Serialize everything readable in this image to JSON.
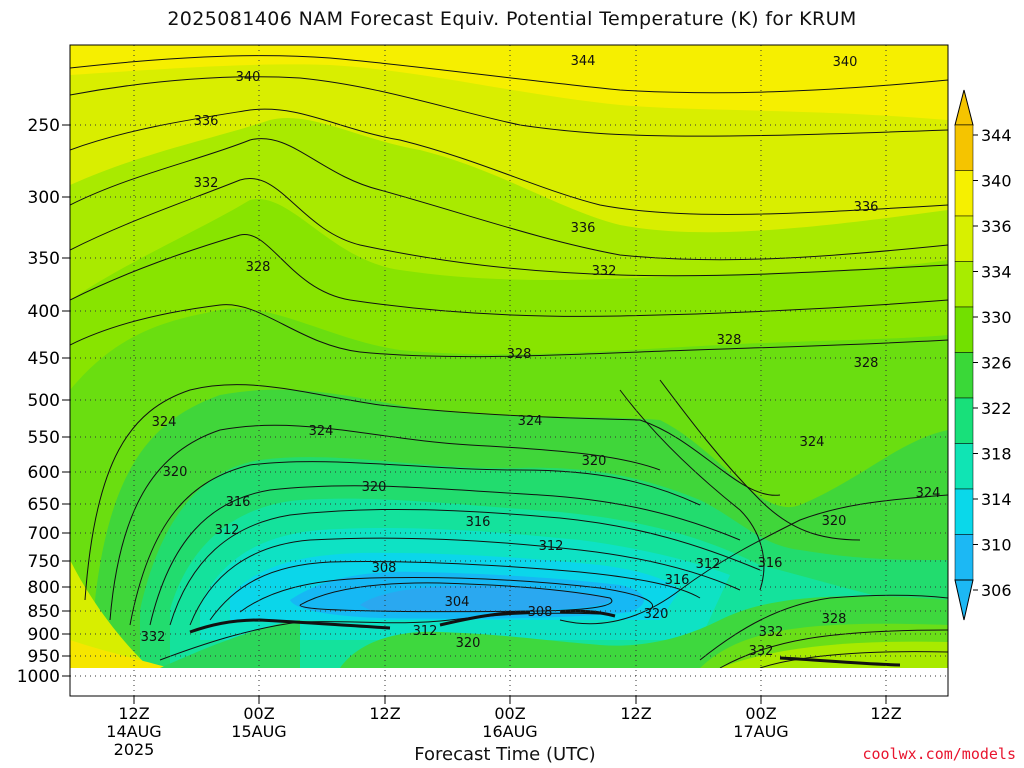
{
  "chart_data": {
    "type": "heatmap",
    "title": "2025081406 NAM Forecast Equiv. Potential Temperature (K) for KRUM",
    "xlabel": "Forecast Time (UTC)",
    "ylabel": "",
    "y_axis": {
      "ticks": [
        "250",
        "300",
        "350",
        "400",
        "450",
        "500",
        "550",
        "600",
        "650",
        "700",
        "750",
        "800",
        "850",
        "900",
        "950",
        "1000"
      ]
    },
    "x_axis": {
      "ticks": [
        {
          "time": "12Z",
          "date": "14AUG",
          "year": "2025"
        },
        {
          "time": "00Z",
          "date": "15AUG",
          "year": ""
        },
        {
          "time": "12Z",
          "date": "",
          "year": ""
        },
        {
          "time": "00Z",
          "date": "16AUG",
          "year": ""
        },
        {
          "time": "12Z",
          "date": "",
          "year": ""
        },
        {
          "time": "00Z",
          "date": "17AUG",
          "year": ""
        },
        {
          "time": "12Z",
          "date": "",
          "year": ""
        }
      ]
    },
    "colorbar": {
      "levels": [
        "344",
        "340",
        "336",
        "334",
        "330",
        "326",
        "322",
        "318",
        "314",
        "310",
        "306"
      ],
      "colors": [
        "#f5c400",
        "#f6f000",
        "#d8f000",
        "#a8ec00",
        "#72e000",
        "#3ad838",
        "#18e07a",
        "#10e4b4",
        "#0ad8ea",
        "#1cb8f4"
      ]
    },
    "contour_labels": [
      {
        "t": 1.68,
        "p": 1025,
        "v": "344"
      },
      {
        "t": 3.02,
        "p": 1014,
        "v": "340"
      },
      {
        "t": 5.5,
        "p": 1025,
        "v": "340"
      },
      {
        "t": 0.93,
        "p": 1040,
        "v": "336"
      },
      {
        "t": 3.92,
        "p": 994,
        "v": "336"
      },
      {
        "t": 5.73,
        "p": 1000,
        "v": "336"
      },
      {
        "t": 0.76,
        "p": 958,
        "v": "332"
      },
      {
        "t": 2.91,
        "p": 968,
        "v": "332"
      },
      {
        "t": 1.38,
        "p": 980,
        "v": "328"
      },
      {
        "t": 3.04,
        "p": 990,
        "v": "328"
      },
      {
        "t": 4.79,
        "p": 1014,
        "v": "328"
      },
      {
        "t": 5.85,
        "p": 1036,
        "v": "328"
      },
      {
        "t": 0.41,
        "p": 970,
        "v": "324"
      },
      {
        "t": 1.71,
        "p": 954,
        "v": "324"
      },
      {
        "t": 3.48,
        "p": 974,
        "v": "324"
      },
      {
        "t": 5.34,
        "p": 990,
        "v": "324"
      },
      {
        "t": 6.32,
        "p": 1002,
        "v": "324"
      },
      {
        "t": 0.56,
        "p": 961,
        "v": "320"
      },
      {
        "t": 2.04,
        "p": 972,
        "v": "320"
      },
      {
        "t": 4.11,
        "p": 979,
        "v": "320"
      },
      {
        "t": 5.82,
        "p": 1012,
        "v": "320"
      },
      {
        "t": 1.08,
        "p": 960,
        "v": "316"
      },
      {
        "t": 3.33,
        "p": 966,
        "v": "316"
      },
      {
        "t": 5.5,
        "p": 957,
        "v": "316"
      },
      {
        "t": 1.0,
        "p": 970,
        "v": "312"
      },
      {
        "t": 3.55,
        "p": 976,
        "v": "312"
      },
      {
        "t": 4.63,
        "p": 957,
        "v": "312"
      },
      {
        "t": 2.29,
        "p": 968,
        "v": "308"
      },
      {
        "t": 4.15,
        "p": 960,
        "v": "308"
      },
      {
        "t": 3.78,
        "p": 977,
        "v": "304"
      },
      {
        "t": 3.03,
        "p": 980,
        "v": "312"
      },
      {
        "t": 3.36,
        "p": 968,
        "v": "320"
      },
      {
        "t": 4.81,
        "p": 964,
        "v": "320"
      },
      {
        "t": 4.91,
        "p": 958,
        "v": "316"
      },
      {
        "t": 5.8,
        "p": 960,
        "v": "328"
      },
      {
        "t": 0.71,
        "p": 961,
        "v": "332"
      },
      {
        "t": 5.38,
        "p": 962,
        "v": "332"
      },
      {
        "t": 5.2,
        "p": 957,
        "v": "332"
      }
    ]
  },
  "footer": {
    "credit": "coolwx.com/models"
  }
}
